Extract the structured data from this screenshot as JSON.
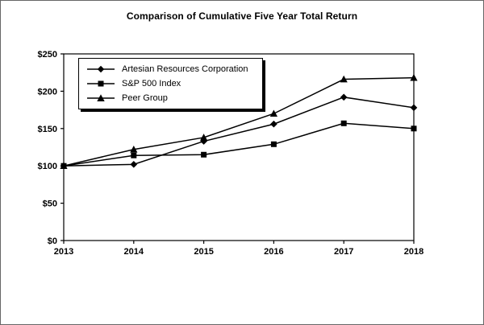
{
  "chart_data": {
    "type": "line",
    "title": "Comparison of Cumulative Five Year Total Return",
    "categories": [
      "2013",
      "2014",
      "2015",
      "2016",
      "2017",
      "2018"
    ],
    "series": [
      {
        "name": "Artesian Resources Corporation",
        "marker": "diamond",
        "values": [
          100,
          102,
          133,
          156,
          192,
          178
        ]
      },
      {
        "name": "S&P 500 Index",
        "marker": "square",
        "values": [
          100,
          114,
          115,
          129,
          157,
          150
        ]
      },
      {
        "name": "Peer Group",
        "marker": "triangle",
        "values": [
          100,
          122,
          138,
          170,
          216,
          218
        ]
      }
    ],
    "xlabel": "",
    "ylabel": "",
    "ylim": [
      0,
      250
    ],
    "ytick_step": 50,
    "ytick_labels": [
      "$0",
      "$50",
      "$100",
      "$150",
      "$200",
      "$250"
    ],
    "grid": false,
    "legend_position": "top-left-inside",
    "line_color": "#000000",
    "marker_color": "#000000"
  }
}
